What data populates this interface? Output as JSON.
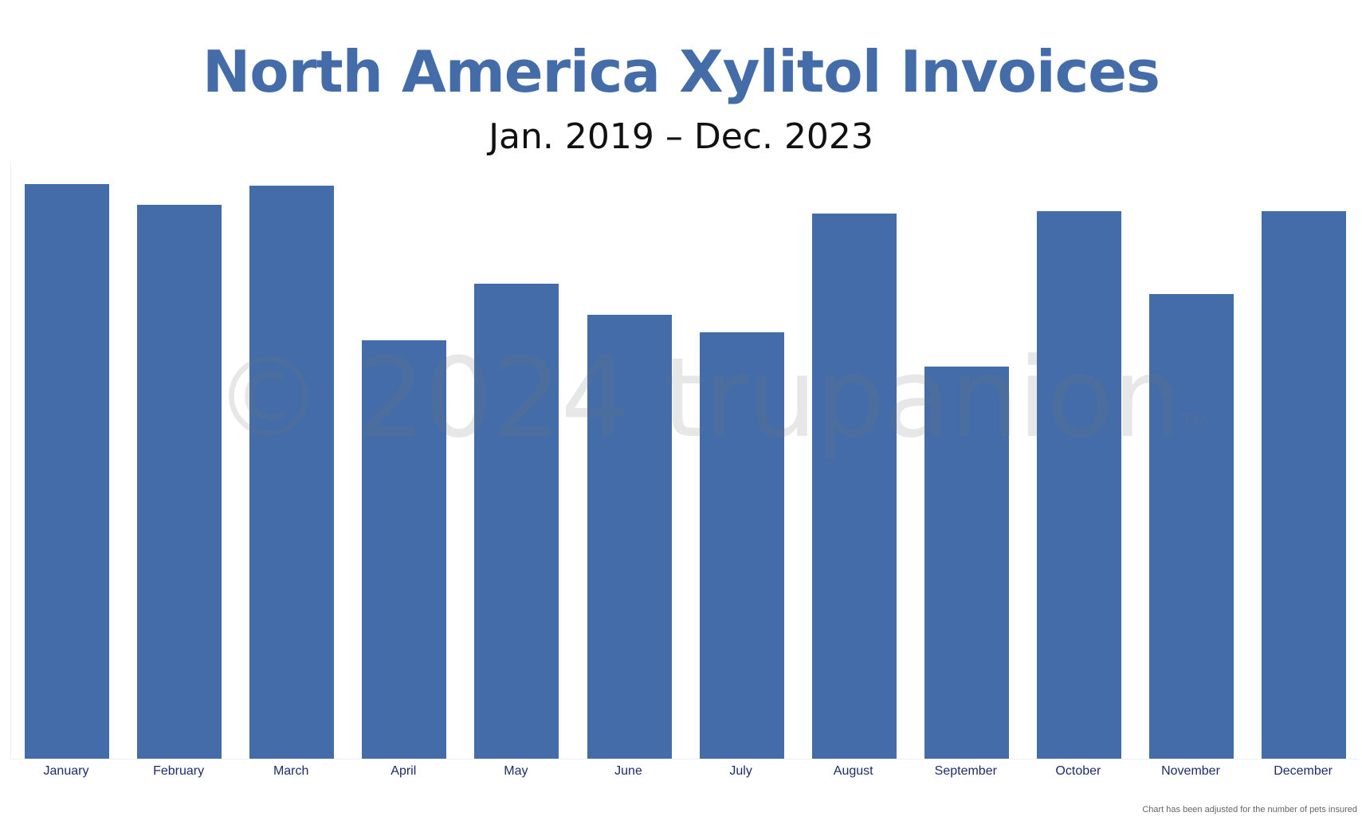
{
  "header": {
    "title": "North America Xylitol Invoices",
    "subtitle": "Jan. 2019 – Dec. 2023"
  },
  "footnote": "Chart has been adjusted for the number of pets insured",
  "watermark": {
    "text": "© 2024 trupanion",
    "trademark": "TM"
  },
  "colors": {
    "bar": "#436ca8",
    "title": "#436ca8",
    "label": "#1f2a6b"
  },
  "chart_data": {
    "type": "bar",
    "title": "North America Xylitol Invoices",
    "subtitle": "Jan. 2019 – Dec. 2023",
    "xlabel": "",
    "ylabel": "",
    "y_axis_visible": false,
    "grid": false,
    "legend": null,
    "note": "Values are relative bar heights (no y-axis scale shown); max ≈ 100",
    "categories": [
      "January",
      "February",
      "March",
      "April",
      "May",
      "June",
      "July",
      "August",
      "September",
      "October",
      "November",
      "December"
    ],
    "values": [
      100,
      96.4,
      99.7,
      72.8,
      82.7,
      77.3,
      74.2,
      94.9,
      68.2,
      95.3,
      80.9,
      95.3
    ],
    "ylim": [
      0,
      104
    ],
    "annotations": [
      "Chart has been adjusted for the number of pets insured"
    ]
  }
}
